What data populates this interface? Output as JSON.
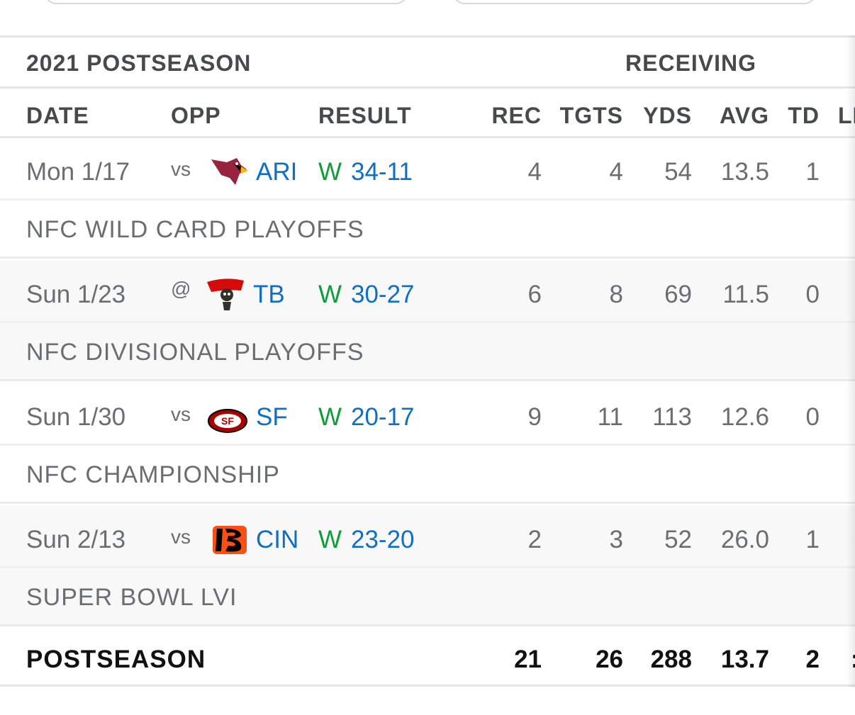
{
  "season_label": "2021 POSTSEASON",
  "category_label": "RECEIVING",
  "columns": {
    "date": "DATE",
    "opp": "OPP",
    "result": "RESULT",
    "rec": "REC",
    "tgts": "TGTS",
    "yds": "YDS",
    "avg": "AVG",
    "td": "TD",
    "lng": "LI"
  },
  "games": [
    {
      "date": "Mon 1/17",
      "loc": "vs",
      "team": "ARI",
      "logo": "cardinals-logo",
      "wl": "W",
      "score": "34-11",
      "rec": "4",
      "tgts": "4",
      "yds": "54",
      "avg": "13.5",
      "td": "1",
      "note": "NFC WILD CARD PLAYOFFS"
    },
    {
      "date": "Sun 1/23",
      "loc": "@",
      "team": "TB",
      "logo": "buccaneers-logo",
      "wl": "W",
      "score": "30-27",
      "rec": "6",
      "tgts": "8",
      "yds": "69",
      "avg": "11.5",
      "td": "0",
      "note": "NFC DIVISIONAL PLAYOFFS"
    },
    {
      "date": "Sun 1/30",
      "loc": "vs",
      "team": "SF",
      "logo": "49ers-logo",
      "wl": "W",
      "score": "20-17",
      "rec": "9",
      "tgts": "11",
      "yds": "113",
      "avg": "12.6",
      "td": "0",
      "note": "NFC CHAMPIONSHIP"
    },
    {
      "date": "Sun 2/13",
      "loc": "vs",
      "team": "CIN",
      "logo": "bengals-logo",
      "wl": "W",
      "score": "23-20",
      "rec": "2",
      "tgts": "3",
      "yds": "52",
      "avg": "26.0",
      "td": "1",
      "note": "SUPER BOWL LVI"
    }
  ],
  "totals": {
    "label": "POSTSEASON",
    "rec": "21",
    "tgts": "26",
    "yds": "288",
    "avg": "13.7",
    "td": "2",
    "lng": ":"
  },
  "colors": {
    "link": "#0f6fc6",
    "win": "#0f9d39",
    "text": "#6c6d6f",
    "header": "#48494a"
  }
}
